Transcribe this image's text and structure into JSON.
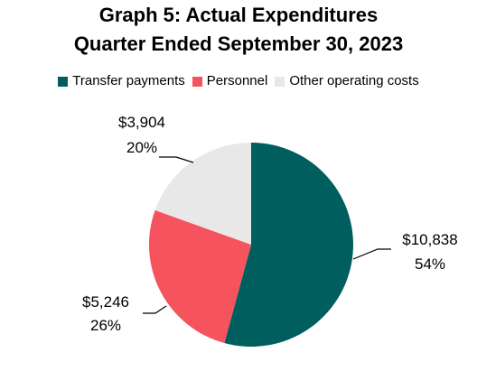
{
  "chart_data": {
    "type": "pie",
    "title": "Graph 5: Actual Expenditures",
    "subtitle": "Quarter Ended September 30, 2023",
    "legend_position": "top",
    "slices": [
      {
        "name": "Transfer payments",
        "value": 10838,
        "value_label": "$10,838",
        "percent_label": "54%",
        "color": "#005e5e"
      },
      {
        "name": "Personnel",
        "value": 5246,
        "value_label": "$5,246",
        "percent_label": "26%",
        "color": "#f5535d"
      },
      {
        "name": "Other operating costs",
        "value": 3904,
        "value_label": "$3,904",
        "percent_label": "20%",
        "color": "#e8e8e8"
      }
    ]
  }
}
